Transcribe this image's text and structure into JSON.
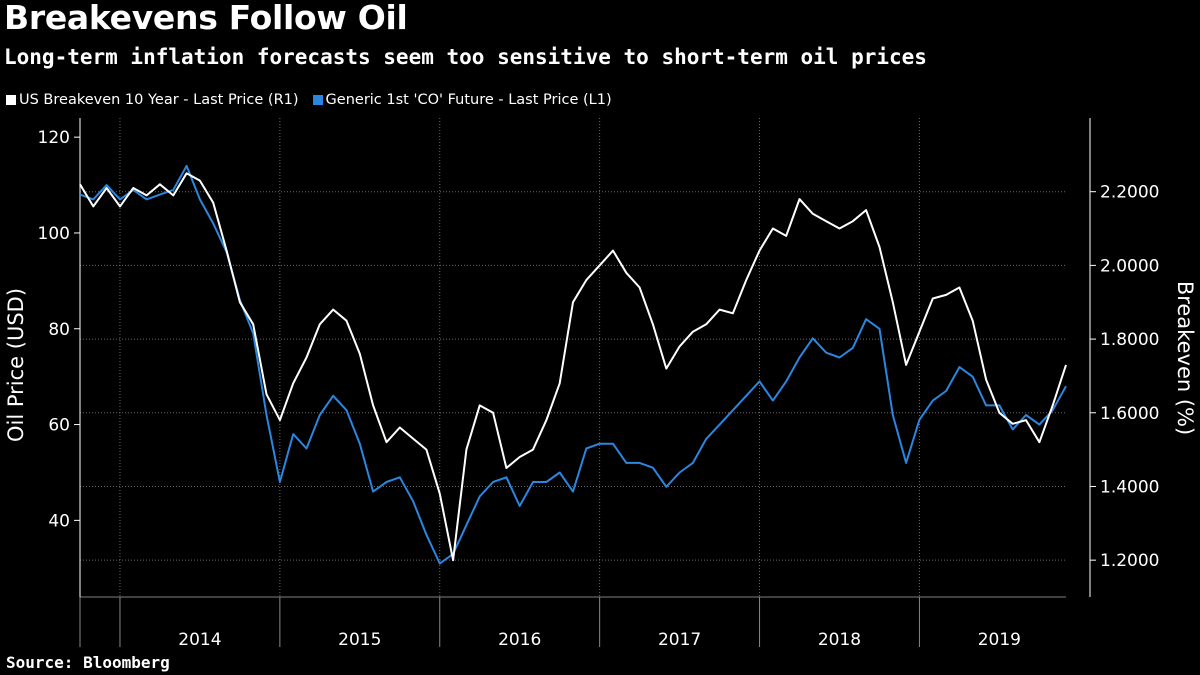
{
  "header": {
    "title": "Breakevens Follow Oil",
    "subtitle": "Long-term inflation forecasts seem too sensitive to short-term oil prices"
  },
  "footer": {
    "source": "Source: Bloomberg"
  },
  "colors": {
    "background": "#000000",
    "breakeven": "#ffffff",
    "oil": "#2b86e0",
    "grid": "#6a6a6a"
  },
  "chart_data": {
    "type": "line",
    "title": "Breakevens Follow Oil",
    "subtitle": "Long-term inflation forecasts seem too sensitive to short-term oil prices",
    "x_axis": {
      "labels": [
        "2014",
        "2015",
        "2016",
        "2017",
        "2018",
        "2019"
      ],
      "range": [
        "2013-10",
        "2019-12"
      ]
    },
    "y_left": {
      "label": "Oil Price (USD)",
      "ticks": [
        "40",
        "60",
        "80",
        "100",
        "120"
      ],
      "range": [
        24,
        124
      ]
    },
    "y_right": {
      "label": "Breakeven (%)",
      "ticks": [
        "1.2000",
        "1.4000",
        "1.6000",
        "1.8000",
        "2.0000",
        "2.2000"
      ],
      "range": [
        1.1,
        2.4
      ]
    },
    "grid": true,
    "legend_position": "top-left",
    "series": [
      {
        "name": "US Breakeven 10 Year - Last Price (R1)",
        "axis": "right",
        "color": "#ffffff",
        "points": [
          [
            "2013-10",
            2.22
          ],
          [
            "2013-11",
            2.16
          ],
          [
            "2013-12",
            2.21
          ],
          [
            "2014-01",
            2.16
          ],
          [
            "2014-02",
            2.21
          ],
          [
            "2014-03",
            2.19
          ],
          [
            "2014-04",
            2.22
          ],
          [
            "2014-05",
            2.19
          ],
          [
            "2014-06",
            2.25
          ],
          [
            "2014-07",
            2.23
          ],
          [
            "2014-08",
            2.17
          ],
          [
            "2014-09",
            2.04
          ],
          [
            "2014-10",
            1.9
          ],
          [
            "2014-11",
            1.84
          ],
          [
            "2014-12",
            1.65
          ],
          [
            "2015-01",
            1.58
          ],
          [
            "2015-02",
            1.68
          ],
          [
            "2015-03",
            1.75
          ],
          [
            "2015-04",
            1.84
          ],
          [
            "2015-05",
            1.88
          ],
          [
            "2015-06",
            1.85
          ],
          [
            "2015-07",
            1.76
          ],
          [
            "2015-08",
            1.62
          ],
          [
            "2015-09",
            1.52
          ],
          [
            "2015-10",
            1.56
          ],
          [
            "2015-11",
            1.53
          ],
          [
            "2015-12",
            1.5
          ],
          [
            "2016-01",
            1.38
          ],
          [
            "2016-02",
            1.2
          ],
          [
            "2016-03",
            1.5
          ],
          [
            "2016-04",
            1.62
          ],
          [
            "2016-05",
            1.6
          ],
          [
            "2016-06",
            1.45
          ],
          [
            "2016-07",
            1.48
          ],
          [
            "2016-08",
            1.5
          ],
          [
            "2016-09",
            1.58
          ],
          [
            "2016-10",
            1.68
          ],
          [
            "2016-11",
            1.9
          ],
          [
            "2016-12",
            1.96
          ],
          [
            "2017-01",
            2.0
          ],
          [
            "2017-02",
            2.04
          ],
          [
            "2017-03",
            1.98
          ],
          [
            "2017-04",
            1.94
          ],
          [
            "2017-05",
            1.84
          ],
          [
            "2017-06",
            1.72
          ],
          [
            "2017-07",
            1.78
          ],
          [
            "2017-08",
            1.82
          ],
          [
            "2017-09",
            1.84
          ],
          [
            "2017-10",
            1.88
          ],
          [
            "2017-11",
            1.87
          ],
          [
            "2017-12",
            1.96
          ],
          [
            "2018-01",
            2.04
          ],
          [
            "2018-02",
            2.1
          ],
          [
            "2018-03",
            2.08
          ],
          [
            "2018-04",
            2.18
          ],
          [
            "2018-05",
            2.14
          ],
          [
            "2018-06",
            2.12
          ],
          [
            "2018-07",
            2.1
          ],
          [
            "2018-08",
            2.12
          ],
          [
            "2018-09",
            2.15
          ],
          [
            "2018-10",
            2.05
          ],
          [
            "2018-11",
            1.9
          ],
          [
            "2018-12",
            1.73
          ],
          [
            "2019-01",
            1.82
          ],
          [
            "2019-02",
            1.91
          ],
          [
            "2019-03",
            1.92
          ],
          [
            "2019-04",
            1.94
          ],
          [
            "2019-05",
            1.85
          ],
          [
            "2019-06",
            1.69
          ],
          [
            "2019-07",
            1.6
          ],
          [
            "2019-08",
            1.57
          ],
          [
            "2019-09",
            1.58
          ],
          [
            "2019-10",
            1.52
          ],
          [
            "2019-11",
            1.62
          ],
          [
            "2019-12",
            1.73
          ]
        ]
      },
      {
        "name": "Generic 1st 'CO' Future - Last Price (L1)",
        "axis": "left",
        "color": "#2b86e0",
        "points": [
          [
            "2013-10",
            108
          ],
          [
            "2013-11",
            107
          ],
          [
            "2013-12",
            110
          ],
          [
            "2014-01",
            107
          ],
          [
            "2014-02",
            109
          ],
          [
            "2014-03",
            107
          ],
          [
            "2014-04",
            108
          ],
          [
            "2014-05",
            109
          ],
          [
            "2014-06",
            114
          ],
          [
            "2014-07",
            107
          ],
          [
            "2014-08",
            102
          ],
          [
            "2014-09",
            96
          ],
          [
            "2014-10",
            86
          ],
          [
            "2014-11",
            79
          ],
          [
            "2014-12",
            62
          ],
          [
            "2015-01",
            48
          ],
          [
            "2015-02",
            58
          ],
          [
            "2015-03",
            55
          ],
          [
            "2015-04",
            62
          ],
          [
            "2015-05",
            66
          ],
          [
            "2015-06",
            63
          ],
          [
            "2015-07",
            56
          ],
          [
            "2015-08",
            46
          ],
          [
            "2015-09",
            48
          ],
          [
            "2015-10",
            49
          ],
          [
            "2015-11",
            44
          ],
          [
            "2015-12",
            37
          ],
          [
            "2016-01",
            31
          ],
          [
            "2016-02",
            33
          ],
          [
            "2016-03",
            39
          ],
          [
            "2016-04",
            45
          ],
          [
            "2016-05",
            48
          ],
          [
            "2016-06",
            49
          ],
          [
            "2016-07",
            43
          ],
          [
            "2016-08",
            48
          ],
          [
            "2016-09",
            48
          ],
          [
            "2016-10",
            50
          ],
          [
            "2016-11",
            46
          ],
          [
            "2016-12",
            55
          ],
          [
            "2017-01",
            56
          ],
          [
            "2017-02",
            56
          ],
          [
            "2017-03",
            52
          ],
          [
            "2017-04",
            52
          ],
          [
            "2017-05",
            51
          ],
          [
            "2017-06",
            47
          ],
          [
            "2017-07",
            50
          ],
          [
            "2017-08",
            52
          ],
          [
            "2017-09",
            57
          ],
          [
            "2017-10",
            60
          ],
          [
            "2017-11",
            63
          ],
          [
            "2017-12",
            66
          ],
          [
            "2018-01",
            69
          ],
          [
            "2018-02",
            65
          ],
          [
            "2018-03",
            69
          ],
          [
            "2018-04",
            74
          ],
          [
            "2018-05",
            78
          ],
          [
            "2018-06",
            75
          ],
          [
            "2018-07",
            74
          ],
          [
            "2018-08",
            76
          ],
          [
            "2018-09",
            82
          ],
          [
            "2018-10",
            80
          ],
          [
            "2018-11",
            62
          ],
          [
            "2018-12",
            52
          ],
          [
            "2019-01",
            61
          ],
          [
            "2019-02",
            65
          ],
          [
            "2019-03",
            67
          ],
          [
            "2019-04",
            72
          ],
          [
            "2019-05",
            70
          ],
          [
            "2019-06",
            64
          ],
          [
            "2019-07",
            64
          ],
          [
            "2019-08",
            59
          ],
          [
            "2019-09",
            62
          ],
          [
            "2019-10",
            60
          ],
          [
            "2019-11",
            63
          ],
          [
            "2019-12",
            68
          ]
        ]
      }
    ]
  }
}
